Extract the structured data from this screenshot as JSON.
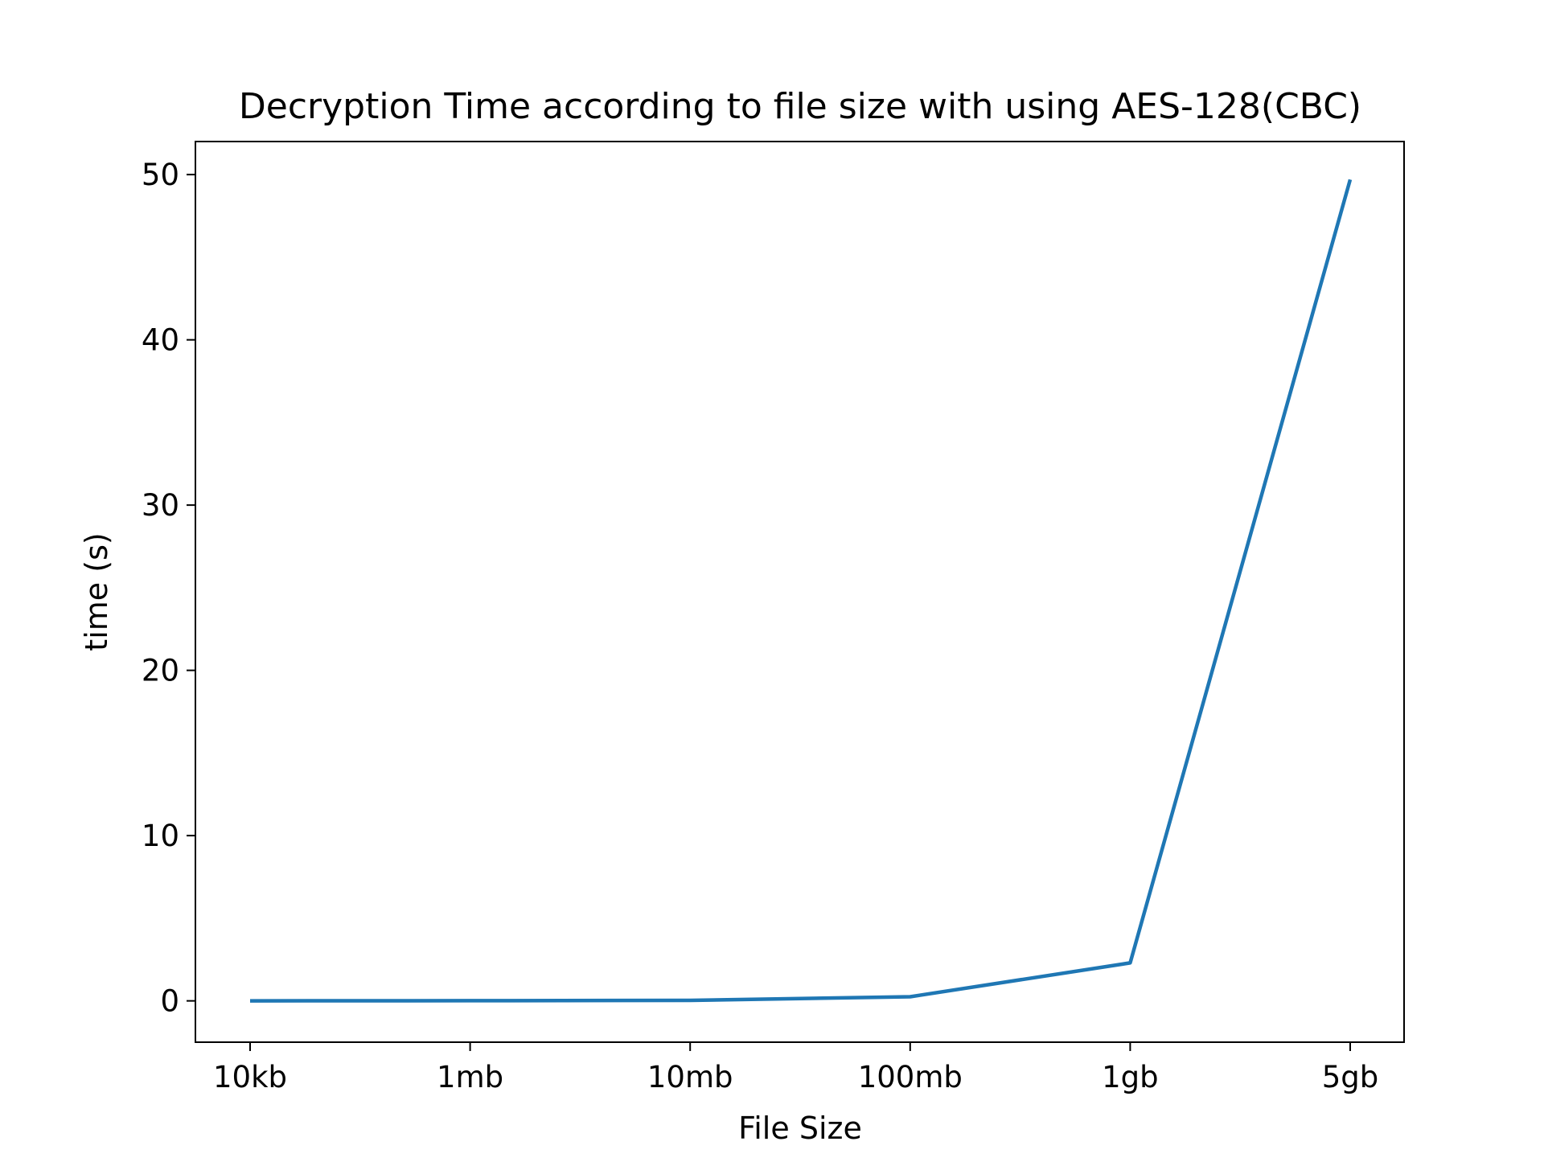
{
  "chart_data": {
    "type": "line",
    "title": "Decryption Time according to file size with using AES-128(CBC)",
    "xlabel": "File Size",
    "ylabel": "time (s)",
    "categories": [
      "10kb",
      "1mb",
      "10mb",
      "100mb",
      "1gb",
      "5gb"
    ],
    "series": [
      {
        "values": [
          0.0,
          0.01,
          0.03,
          0.25,
          2.3,
          49.7
        ],
        "color": "#1f77b4"
      }
    ],
    "ylim": [
      -2.5,
      52.0
    ],
    "yticks": [
      0,
      10,
      20,
      30,
      40,
      50
    ],
    "grid": false,
    "legend": "none"
  }
}
